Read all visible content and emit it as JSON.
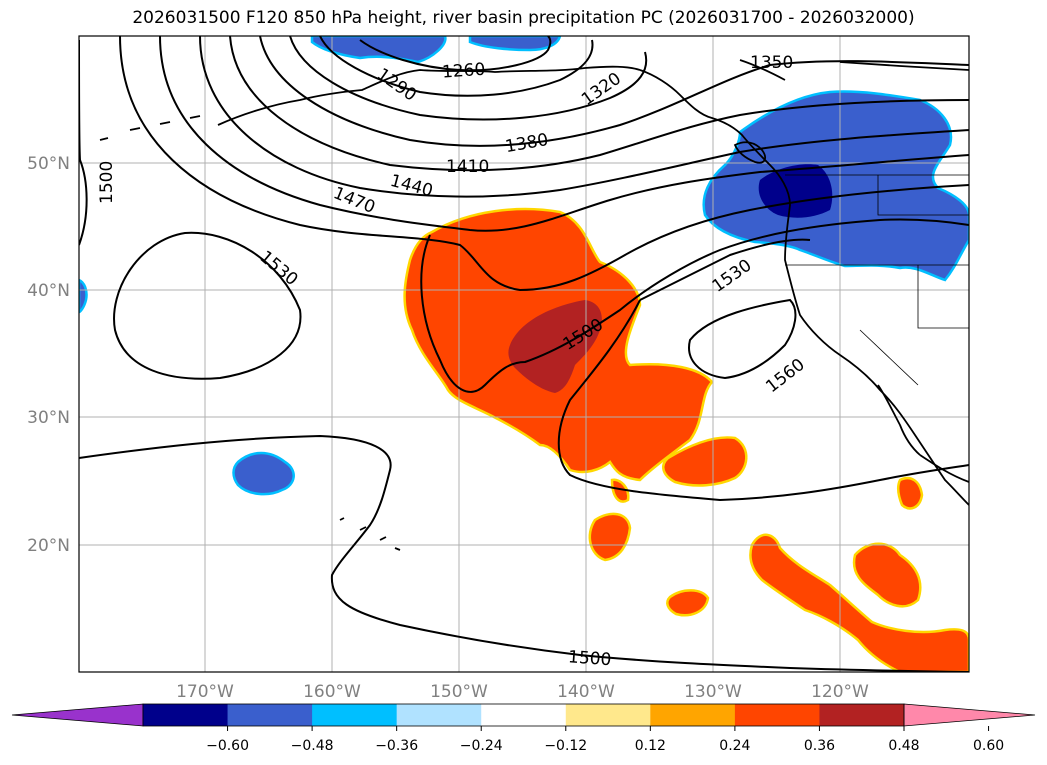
{
  "title": "2026031500 F120 850 hPa height, river basin precipitation PC (2026031700 - 2026032000)",
  "map": {
    "lon_ticks": [
      "170°W",
      "160°W",
      "150°W",
      "140°W",
      "130°W",
      "120°W"
    ],
    "lat_ticks": [
      "50°N",
      "40°N",
      "30°N",
      "20°N"
    ],
    "contour_labels": [
      "1260",
      "1290",
      "1320",
      "1350",
      "1380",
      "1410",
      "1440",
      "1470",
      "1500",
      "1530",
      "1500",
      "1530",
      "1560",
      "1500"
    ],
    "colors": {
      "land_line": "#000000",
      "grid": "#b0b0b0",
      "pos_shading": "#ff4500",
      "strong_pos_shading": "#b22222",
      "neg_shading": "#3a5fcd",
      "strong_neg_shading": "#00008b"
    }
  },
  "colorbar": {
    "ticks": [
      "−0.60",
      "−0.48",
      "−0.36",
      "−0.24",
      "−0.12",
      "0.12",
      "0.24",
      "0.36",
      "0.48",
      "0.60"
    ],
    "colors": [
      "#9932cc",
      "#00008b",
      "#3a5fcd",
      "#00bfff",
      "#b0e2ff",
      "#ffffff",
      "#ffe88c",
      "#ffa500",
      "#ff4500",
      "#b22222",
      "#ff88aa"
    ]
  }
}
